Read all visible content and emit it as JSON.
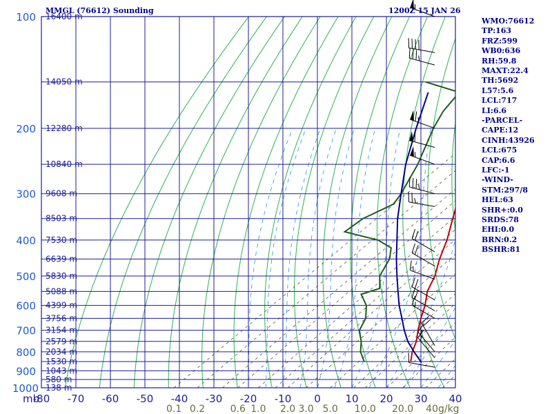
{
  "header": {
    "left": "MMGL (76612) Sounding",
    "right": "1200Z 15 JAN 26"
  },
  "colors": {
    "frame": "#1b1b9e",
    "header_text": "#00008b",
    "pressure_label": "#1e5bd6",
    "height_label": "#1b1b9e",
    "dry_adiabat": "#2bb24c",
    "moist_adiabat": "#1e90ff",
    "mixing_ratio": "#6b6b3b",
    "temperature": "#c00000",
    "dewpoint": "#1a5c1a",
    "parcel": "#00008b",
    "wind": "#000000",
    "side_text": "#00008b"
  },
  "chart_data": {
    "type": "line",
    "title": "MMGL (76612) Sounding",
    "subtitle": "1200Z 15 JAN 26",
    "xlabel": "mb",
    "ylabel": "",
    "xlim": [
      -80,
      40
    ],
    "ylim": [
      1000,
      100
    ],
    "skew_degC_per_log_p": 65.0,
    "pressure_levels": [
      100,
      200,
      300,
      400,
      500,
      600,
      700,
      800,
      900,
      1000
    ],
    "pressure_tick_labels": [
      "100",
      "200",
      "300",
      "400",
      "500",
      "600",
      "700",
      "800",
      "900",
      "1000"
    ],
    "temperature_tick_labels": [
      "-80",
      "-70",
      "-60",
      "-50",
      "-40",
      "-30",
      "-20",
      "-10",
      "0",
      "10",
      "20",
      "30",
      "40"
    ],
    "temperature_ticks": [
      -80,
      -70,
      -60,
      -50,
      -40,
      -30,
      -20,
      -10,
      0,
      10,
      20,
      30,
      40
    ],
    "height_labels": [
      {
        "p": 100,
        "label": "16400 m"
      },
      {
        "p": 150,
        "label": "14050 m"
      },
      {
        "p": 200,
        "label": "12280 m"
      },
      {
        "p": 250,
        "label": "10840 m"
      },
      {
        "p": 300,
        "label": "9608 m"
      },
      {
        "p": 350,
        "label": "8503 m"
      },
      {
        "p": 400,
        "label": "7530 m"
      },
      {
        "p": 450,
        "label": "6639 m"
      },
      {
        "p": 500,
        "label": "5830 m"
      },
      {
        "p": 550,
        "label": "5088 m"
      },
      {
        "p": 600,
        "label": "4399 m"
      },
      {
        "p": 650,
        "label": "3756 m"
      },
      {
        "p": 700,
        "label": "3154 m"
      },
      {
        "p": 750,
        "label": "2579 m"
      },
      {
        "p": 800,
        "label": "2034 m"
      },
      {
        "p": 850,
        "label": "1530 m"
      },
      {
        "p": 900,
        "label": "1043 m"
      },
      {
        "p": 950,
        "label": "580 m"
      },
      {
        "p": 1000,
        "label": "138 m"
      }
    ],
    "mixing_ratio_labels": [
      {
        "w": 0.1,
        "label": "0.1"
      },
      {
        "w": 0.2,
        "label": "0.2"
      },
      {
        "w": 0.6,
        "label": "0.6"
      },
      {
        "w": 1.0,
        "label": "1.0"
      },
      {
        "w": 2.0,
        "label": "2.0"
      },
      {
        "w": 3.0,
        "label": "3.0"
      },
      {
        "w": 5.0,
        "label": "5.0"
      },
      {
        "w": 10.0,
        "label": "10.0"
      },
      {
        "w": 20.0,
        "label": "20.0"
      },
      {
        "w": 40.0,
        "label": "40g/kg"
      }
    ],
    "series": [
      {
        "name": "Temperature",
        "points": [
          {
            "p": 850,
            "t": 16.5
          },
          {
            "p": 800,
            "t": 13.0
          },
          {
            "p": 750,
            "t": 10.0
          },
          {
            "p": 700,
            "t": 6.0
          },
          {
            "p": 650,
            "t": 2.0
          },
          {
            "p": 600,
            "t": -2.0
          },
          {
            "p": 550,
            "t": -7.0
          },
          {
            "p": 500,
            "t": -11.0
          },
          {
            "p": 450,
            "t": -16.5
          },
          {
            "p": 400,
            "t": -22.0
          },
          {
            "p": 350,
            "t": -29.0
          },
          {
            "p": 300,
            "t": -37.0
          },
          {
            "p": 250,
            "t": -46.0
          },
          {
            "p": 200,
            "t": -55.0
          },
          {
            "p": 165,
            "t": -63.0
          },
          {
            "p": 148,
            "t": -61.0
          },
          {
            "p": 135,
            "t": -64.0
          },
          {
            "p": 120,
            "t": -68.0
          },
          {
            "p": 100,
            "t": -75.5
          }
        ]
      },
      {
        "name": "Dewpoint",
        "points": [
          {
            "p": 850,
            "t": 3.0
          },
          {
            "p": 800,
            "t": -2.0
          },
          {
            "p": 750,
            "t": -6.0
          },
          {
            "p": 700,
            "t": -11.0
          },
          {
            "p": 650,
            "t": -14.0
          },
          {
            "p": 600,
            "t": -19.0
          },
          {
            "p": 560,
            "t": -25.0
          },
          {
            "p": 540,
            "t": -22.0
          },
          {
            "p": 500,
            "t": -27.0
          },
          {
            "p": 450,
            "t": -31.0
          },
          {
            "p": 420,
            "t": -35.0
          },
          {
            "p": 400,
            "t": -42.0
          },
          {
            "p": 380,
            "t": -55.0
          },
          {
            "p": 350,
            "t": -55.0
          },
          {
            "p": 320,
            "t": -52.0
          },
          {
            "p": 300,
            "t": -54.0
          },
          {
            "p": 250,
            "t": -61.0
          },
          {
            "p": 200,
            "t": -71.0
          },
          {
            "p": 180,
            "t": -75.0
          },
          {
            "p": 160,
            "t": -78.0
          },
          {
            "p": 150,
            "t": -92.0
          }
        ]
      },
      {
        "name": "Parcel",
        "points": [
          {
            "p": 855,
            "t": 20.0
          },
          {
            "p": 800,
            "t": 13.5
          },
          {
            "p": 750,
            "t": 7.5
          },
          {
            "p": 700,
            "t": 2.0
          },
          {
            "p": 650,
            "t": -3.5
          },
          {
            "p": 600,
            "t": -9.5
          },
          {
            "p": 550,
            "t": -15.5
          },
          {
            "p": 500,
            "t": -22.0
          },
          {
            "p": 450,
            "t": -29.0
          },
          {
            "p": 400,
            "t": -36.5
          },
          {
            "p": 350,
            "t": -45.0
          },
          {
            "p": 300,
            "t": -54.0
          },
          {
            "p": 250,
            "t": -64.5
          },
          {
            "p": 200,
            "t": -76.0
          },
          {
            "p": 160,
            "t": -87.0
          }
        ]
      }
    ],
    "wind_barbs": [
      {
        "p": 100,
        "dir": 290,
        "spd": 55
      },
      {
        "p": 125,
        "dir": 280,
        "spd": 40
      },
      {
        "p": 135,
        "dir": 285,
        "spd": 35
      },
      {
        "p": 200,
        "dir": 290,
        "spd": 65
      },
      {
        "p": 225,
        "dir": 285,
        "spd": 60
      },
      {
        "p": 250,
        "dir": 290,
        "spd": 55
      },
      {
        "p": 300,
        "dir": 285,
        "spd": 35
      },
      {
        "p": 325,
        "dir": 280,
        "spd": 25
      },
      {
        "p": 430,
        "dir": 300,
        "spd": 20
      },
      {
        "p": 470,
        "dir": 300,
        "spd": 20
      },
      {
        "p": 510,
        "dir": 290,
        "spd": 15
      },
      {
        "p": 580,
        "dir": 300,
        "spd": 20
      },
      {
        "p": 620,
        "dir": 300,
        "spd": 20
      },
      {
        "p": 650,
        "dir": 300,
        "spd": 15
      },
      {
        "p": 770,
        "dir": 330,
        "spd": 20
      },
      {
        "p": 800,
        "dir": 320,
        "spd": 15
      },
      {
        "p": 830,
        "dir": 320,
        "spd": 15
      },
      {
        "p": 880,
        "dir": 280,
        "spd": 10
      }
    ]
  },
  "side_panel": [
    "WMO:76612",
    "TP:163",
    "FRZ:599",
    "WB0:636",
    "RH:59.8",
    "MAXT:22.4",
    "TH:5692",
    "L57:5.6",
    "LCL:717",
    "LI:6.6",
    "-PARCEL-",
    "CAPE:12",
    "CINH:43926",
    "LCL:675",
    "CAP:6.6",
    "LFC:-1",
    "-WIND-",
    "STM:297/8",
    "HEL:63",
    "SHR+:0.0",
    "SRDS:78",
    "EHI:0.0",
    "BRN:0.2",
    "BSHR:81"
  ]
}
